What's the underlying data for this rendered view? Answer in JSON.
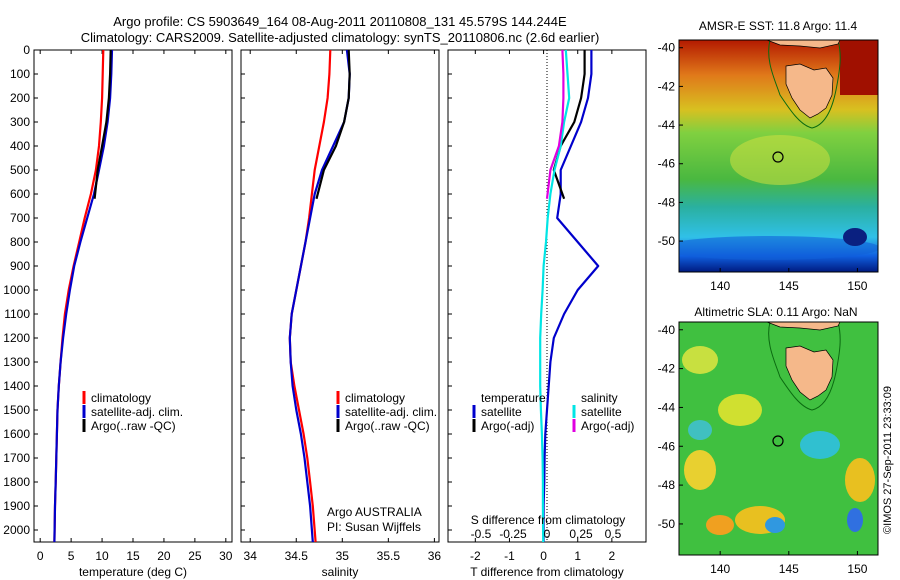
{
  "header": {
    "line1": "Argo profile: CS 5903649_164 08-Aug-2011 20110808_131 45.579S 144.244E",
    "line2": "Climatology: CARS2009. Satellite-adjusted climatology: synTS_20110806.nc (2.6d earlier)"
  },
  "colors": {
    "climatology": "#ff0000",
    "satellite": "#0000cc",
    "argo": "#000000",
    "salinity_satellite": "#00e5e5",
    "salinity_argo": "#e000e0",
    "land": "#f5b88a"
  },
  "depth_ticks": [
    0,
    100,
    200,
    300,
    400,
    500,
    600,
    700,
    800,
    900,
    1000,
    1100,
    1200,
    1300,
    1400,
    1500,
    1600,
    1700,
    1800,
    1900,
    2000
  ],
  "panels": {
    "temperature": {
      "xlabel": "temperature (deg C)",
      "xticks": [
        0,
        5,
        10,
        15,
        20,
        25,
        30
      ],
      "legend": [
        "climatology",
        "satellite-adj. clim.",
        "Argo(..raw -QC)"
      ]
    },
    "salinity": {
      "xlabel": "salinity",
      "xticks": [
        "34",
        "34.5",
        "35",
        "35.5",
        "36"
      ],
      "legend": [
        "climatology",
        "satellite-adj. clim.",
        "Argo(..raw -QC)"
      ],
      "credit1": "Argo AUSTRALIA",
      "credit2": "PI: Susan Wijffels"
    },
    "difference": {
      "xlabel": "T difference from climatology",
      "xlabel2": "S difference from climatology",
      "xticks": [
        "-2",
        "-1",
        "0",
        "1",
        "2"
      ],
      "sticks": [
        "-0.5",
        "-0.25",
        "0",
        "0.25",
        "0.5"
      ],
      "legend_temp_title": "temperature",
      "legend_sal_title": "salinity",
      "legend_sat": "satellite",
      "legend_argo": "Argo(-adj)"
    }
  },
  "maps": {
    "sst_title": "AMSR-E SST: 11.8 Argo: 11.4",
    "sla_title": "Altimetric SLA: 0.11 Argo: NaN",
    "lat_ticks": [
      "-40",
      "-42",
      "-44",
      "-46",
      "-48",
      "-50"
    ],
    "lon_ticks": [
      "140",
      "145",
      "150"
    ],
    "credit": "©IMOS 27-Sep-2011 23:33:09"
  },
  "chart_data": [
    {
      "type": "line",
      "title": "",
      "xlabel": "temperature (deg C)",
      "ylabel": "",
      "xlim": [
        -1,
        31
      ],
      "ylim": [
        2050,
        0
      ],
      "series": [
        {
          "name": "climatology",
          "x": [
            10.2,
            10.1,
            10.0,
            9.8,
            9.5,
            9.0,
            8.2,
            7.2,
            6.3,
            5.4,
            4.6,
            4.0,
            3.6,
            3.3,
            3.0,
            2.8,
            2.7,
            2.6,
            2.5,
            2.4,
            2.3
          ],
          "y": [
            0,
            100,
            200,
            300,
            400,
            500,
            600,
            700,
            800,
            900,
            1000,
            1100,
            1200,
            1300,
            1400,
            1500,
            1600,
            1700,
            1800,
            1900,
            2050
          ]
        },
        {
          "name": "satellite-adj. clim.",
          "x": [
            11.6,
            11.5,
            11.3,
            10.9,
            10.3,
            9.5,
            8.7,
            7.6,
            6.5,
            5.5,
            4.8,
            4.2,
            3.7,
            3.3,
            3.0,
            2.8,
            2.7,
            2.6,
            2.5,
            2.4,
            2.3
          ],
          "y": [
            0,
            100,
            200,
            300,
            400,
            500,
            600,
            700,
            800,
            900,
            1000,
            1100,
            1200,
            1300,
            1400,
            1500,
            1600,
            1700,
            1800,
            1900,
            2050
          ]
        },
        {
          "name": "Argo(..raw -QC)",
          "x": [
            11.4,
            11.3,
            11.1,
            10.7,
            10.0,
            9.3,
            8.8
          ],
          "y": [
            0,
            100,
            200,
            300,
            400,
            500,
            620
          ]
        }
      ]
    },
    {
      "type": "line",
      "title": "",
      "xlabel": "salinity",
      "ylabel": "",
      "xlim": [
        33.9,
        36.05
      ],
      "ylim": [
        2050,
        0
      ],
      "series": [
        {
          "name": "climatology",
          "x": [
            34.87,
            34.86,
            34.84,
            34.8,
            34.75,
            34.7,
            34.67,
            34.64,
            34.6,
            34.55,
            34.5,
            34.45,
            34.43,
            34.44,
            34.48,
            34.53,
            34.58,
            34.62,
            34.65,
            34.68,
            34.71
          ],
          "y": [
            0,
            100,
            200,
            300,
            400,
            500,
            600,
            700,
            800,
            900,
            1000,
            1100,
            1200,
            1300,
            1400,
            1500,
            1600,
            1700,
            1800,
            1900,
            2050
          ]
        },
        {
          "name": "satellite-adj. clim.",
          "x": [
            35.05,
            35.08,
            35.07,
            35.02,
            34.9,
            34.78,
            34.7,
            34.65,
            34.6,
            34.55,
            34.5,
            34.45,
            34.43,
            34.44,
            34.46,
            34.5,
            34.55,
            34.59,
            34.62,
            34.65,
            34.68
          ],
          "y": [
            0,
            100,
            200,
            300,
            400,
            500,
            600,
            700,
            800,
            900,
            1000,
            1100,
            1200,
            1300,
            1400,
            1500,
            1600,
            1700,
            1800,
            1900,
            2050
          ]
        },
        {
          "name": "Argo(..raw -QC)",
          "x": [
            35.07,
            35.08,
            35.07,
            35.02,
            34.93,
            34.8,
            34.72
          ],
          "y": [
            0,
            100,
            200,
            300,
            400,
            500,
            620
          ]
        }
      ]
    },
    {
      "type": "line",
      "title": "",
      "xlabel": "T difference from climatology",
      "ylabel": "",
      "xlim": [
        -2.8,
        3.0
      ],
      "ylim": [
        2050,
        0
      ],
      "series": [
        {
          "name": "temperature satellite",
          "x": [
            1.4,
            1.4,
            1.3,
            1.1,
            0.8,
            0.5,
            0.5,
            0.4,
            1.0,
            1.6,
            1.0,
            0.6,
            0.3,
            0.2,
            0.15,
            0.1,
            0.05,
            0.03,
            0.02,
            0.0,
            0.0
          ],
          "y": [
            0,
            100,
            200,
            300,
            400,
            500,
            600,
            700,
            800,
            900,
            1000,
            1100,
            1200,
            1300,
            1400,
            1500,
            1600,
            1700,
            1800,
            1900,
            2050
          ]
        },
        {
          "name": "temperature Argo(-adj)",
          "x": [
            1.2,
            1.2,
            1.1,
            0.9,
            0.5,
            0.3,
            0.6
          ],
          "y": [
            0,
            100,
            200,
            300,
            400,
            500,
            620
          ]
        },
        {
          "name": "salinity satellite",
          "x": [
            0.65,
            0.7,
            0.75,
            0.6,
            0.5,
            0.32,
            0.2,
            0.12,
            0.07,
            0.0,
            -0.03,
            -0.07,
            -0.1,
            -0.1,
            -0.1,
            -0.08,
            -0.05,
            -0.03,
            -0.02,
            -0.02,
            -0.01
          ],
          "y": [
            0,
            100,
            200,
            300,
            400,
            500,
            600,
            700,
            800,
            900,
            1000,
            1100,
            1200,
            1300,
            1400,
            1500,
            1600,
            1700,
            1800,
            1900,
            2050
          ]
        },
        {
          "name": "salinity Argo(-adj)",
          "x": [
            0.55,
            0.58,
            0.58,
            0.55,
            0.45,
            0.2,
            0.1
          ],
          "y": [
            0,
            100,
            200,
            300,
            400,
            500,
            620
          ]
        }
      ]
    }
  ]
}
